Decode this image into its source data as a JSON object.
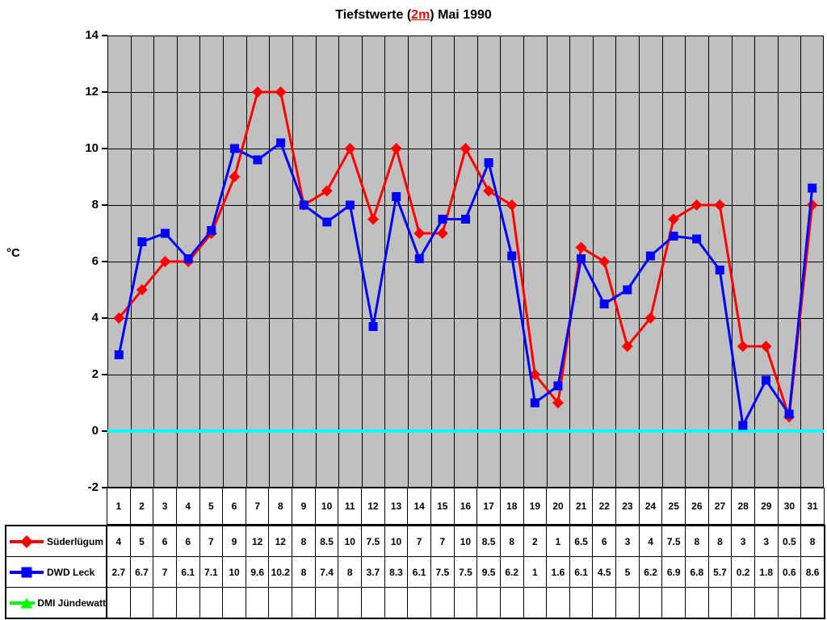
{
  "title": {
    "prefix": "Tiefstwerte (",
    "highlight": "2m",
    "suffix": ") Mai 1990",
    "highlight_color": "#ff0000"
  },
  "y_axis": {
    "label": "°C",
    "ticks": [
      14,
      12,
      10,
      8,
      6,
      4,
      2,
      0,
      -2
    ]
  },
  "chart_data": {
    "type": "line",
    "title": "Tiefstwerte (2m) Mai 1990",
    "xlabel": "",
    "ylabel": "°C",
    "ylim": [
      -2,
      14
    ],
    "y_step": 2,
    "grid": true,
    "plot_background": "#c0c0c0",
    "grid_color": "#000000",
    "legend_position": "table-left",
    "categories": [
      1,
      2,
      3,
      4,
      5,
      6,
      7,
      8,
      9,
      10,
      11,
      12,
      13,
      14,
      15,
      16,
      17,
      18,
      19,
      20,
      21,
      22,
      23,
      24,
      25,
      26,
      27,
      28,
      29,
      30,
      31
    ],
    "reference_line": {
      "value": 0,
      "color": "#00ffff"
    },
    "series": [
      {
        "name": "Süderlügum",
        "color": "#ff0000",
        "marker": "diamond",
        "values": [
          4,
          5,
          6,
          6,
          7,
          9,
          12,
          12,
          8,
          8.5,
          10,
          7.5,
          10,
          7,
          7,
          10,
          8.5,
          8,
          2,
          1,
          6.5,
          6,
          3,
          4,
          7.5,
          8,
          8,
          3,
          3,
          0.5,
          8
        ]
      },
      {
        "name": "DWD Leck",
        "color": "#0000ff",
        "marker": "square",
        "values": [
          2.7,
          6.7,
          7,
          6.1,
          7.1,
          10,
          9.6,
          10.2,
          8,
          7.4,
          8,
          3.7,
          8.3,
          6.1,
          7.5,
          7.5,
          9.5,
          6.2,
          1,
          1.6,
          6.1,
          4.5,
          5,
          6.2,
          6.9,
          6.8,
          5.7,
          0.2,
          1.8,
          0.6,
          8.6
        ]
      },
      {
        "name": "DMI Jündewatt",
        "color": "#00ff00",
        "marker": "triangle",
        "values": []
      }
    ]
  }
}
